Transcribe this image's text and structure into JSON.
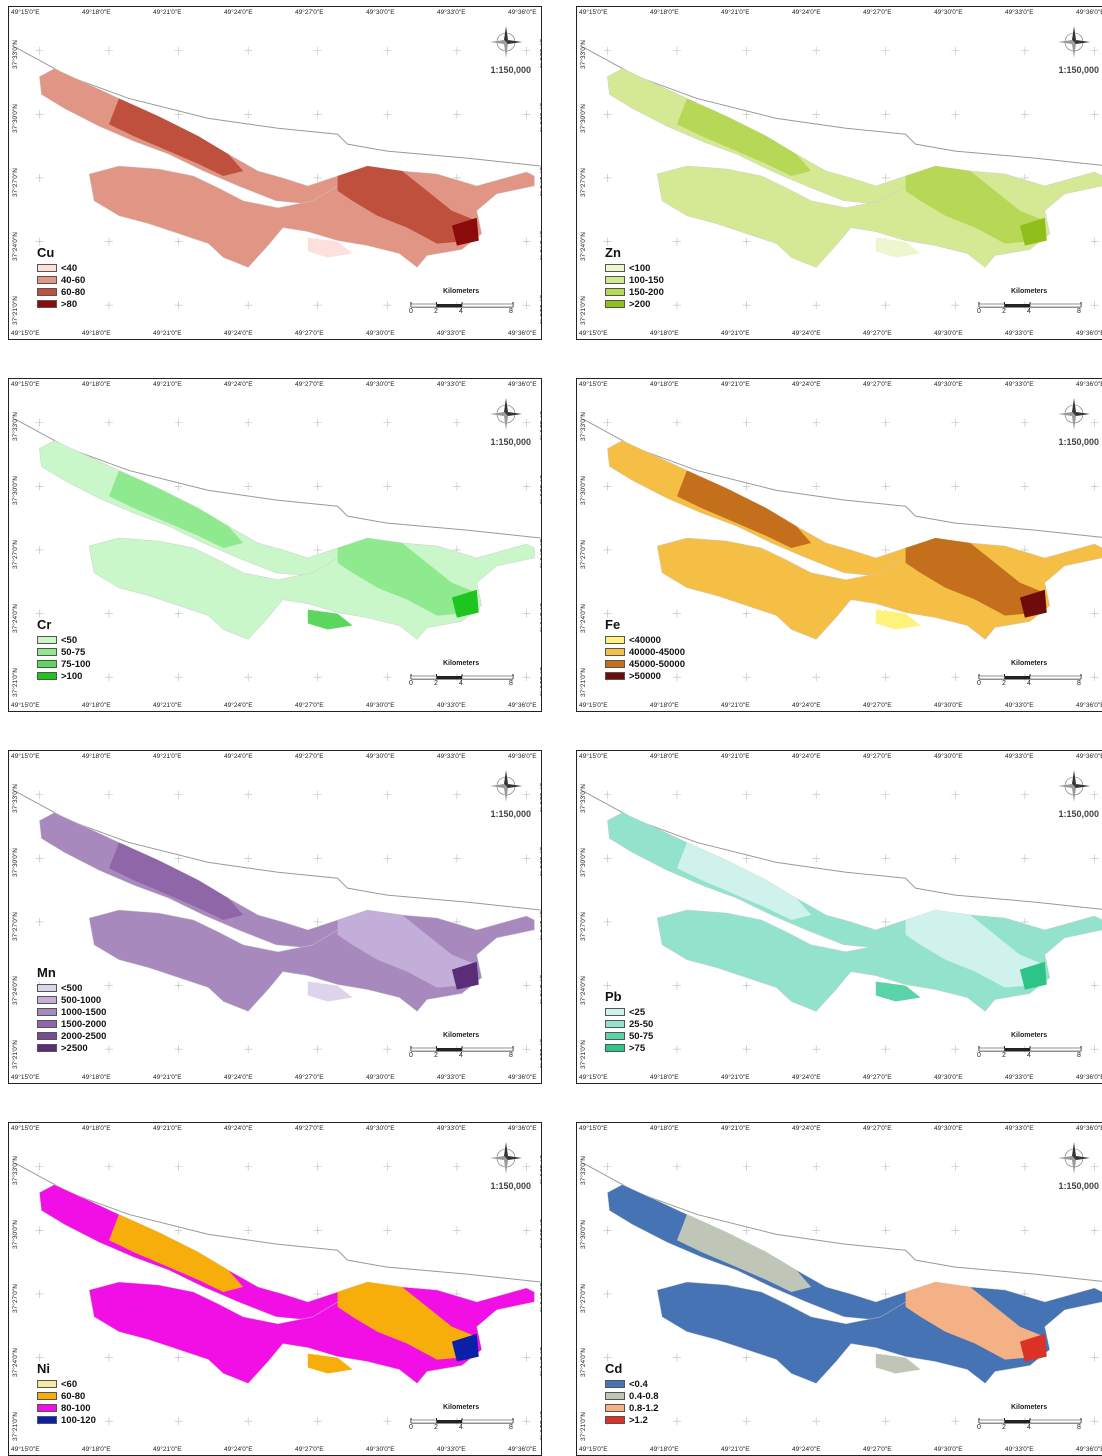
{
  "x_ticks": [
    "49°15'0\"E",
    "49°18'0\"E",
    "49°21'0\"E",
    "49°24'0\"E",
    "49°27'0\"E",
    "49°30'0\"E",
    "49°33'0\"E",
    "49°36'0\"E"
  ],
  "y_ticks": [
    "37°33'0\"N",
    "37°30'0\"N",
    "37°27'0\"N",
    "37°24'0\"N",
    "37°21'0\"N"
  ],
  "scale_ratio": "1:150,000",
  "scalebar": {
    "label": "Kilometers",
    "numbers": [
      "0",
      "2",
      "4",
      "8"
    ]
  },
  "panels": [
    {
      "title": "Cu",
      "legend": [
        {
          "label": "<40",
          "color": "#fde0dd"
        },
        {
          "label": "40-60",
          "color": "#e09585"
        },
        {
          "label": "60-80",
          "color": "#c0503e"
        },
        {
          "label": ">80",
          "color": "#8b0a0a"
        }
      ],
      "base": "#e09585",
      "patches": [
        "#c0503e",
        "#c0503e",
        "#fde0dd",
        "#8b0a0a"
      ]
    },
    {
      "title": "Zn",
      "legend": [
        {
          "label": "<100",
          "color": "#edf7cf"
        },
        {
          "label": "100-150",
          "color": "#d5e995"
        },
        {
          "label": "150-200",
          "color": "#b7d756"
        },
        {
          "label": ">200",
          "color": "#8fbf1a"
        }
      ],
      "base": "#d5e995",
      "patches": [
        "#b7d756",
        "#b7d756",
        "#edf7cf",
        "#8fbf1a"
      ]
    },
    {
      "title": "Cr",
      "legend": [
        {
          "label": "<50",
          "color": "#c9f7c9"
        },
        {
          "label": "50-75",
          "color": "#8fe98f"
        },
        {
          "label": "75-100",
          "color": "#5cd65c"
        },
        {
          "label": ">100",
          "color": "#1fc51f"
        }
      ],
      "base": "#c9f7c9",
      "patches": [
        "#8fe98f",
        "#8fe98f",
        "#5cd65c",
        "#1fc51f"
      ]
    },
    {
      "title": "Fe",
      "legend": [
        {
          "label": "<40000",
          "color": "#fff27a"
        },
        {
          "label": "40000-45000",
          "color": "#f5be45"
        },
        {
          "label": "45000-50000",
          "color": "#c46f1c"
        },
        {
          "label": ">50000",
          "color": "#6e0b0b"
        }
      ],
      "base": "#f5be45",
      "patches": [
        "#c46f1c",
        "#c46f1c",
        "#fff27a",
        "#6e0b0b"
      ]
    },
    {
      "title": "Mn",
      "legend": [
        {
          "label": "<500",
          "color": "#ddd3ea"
        },
        {
          "label": "500-1000",
          "color": "#c2aed8"
        },
        {
          "label": "1000-1500",
          "color": "#a889bd"
        },
        {
          "label": "1500-2000",
          "color": "#8f67a8"
        },
        {
          "label": "2000-2500",
          "color": "#764b91"
        },
        {
          "label": ">2500",
          "color": "#5b2d78"
        }
      ],
      "base": "#a889bd",
      "patches": [
        "#8f67a8",
        "#c2aed8",
        "#ddd3ea",
        "#5b2d78"
      ]
    },
    {
      "title": "Pb",
      "legend": [
        {
          "label": "<25",
          "color": "#cff2ec"
        },
        {
          "label": "25-50",
          "color": "#93e2cc"
        },
        {
          "label": "50-75",
          "color": "#5ad3a8"
        },
        {
          "label": ">75",
          "color": "#2dc487"
        }
      ],
      "base": "#93e2cc",
      "patches": [
        "#cff2ec",
        "#cff2ec",
        "#5ad3a8",
        "#2dc487"
      ]
    },
    {
      "title": "Ni",
      "legend": [
        {
          "label": "<60",
          "color": "#f5eaa0"
        },
        {
          "label": "60-80",
          "color": "#f7ae0a"
        },
        {
          "label": "80-100",
          "color": "#f20fe6"
        },
        {
          "label": "100-120",
          "color": "#0b1fa8"
        }
      ],
      "base": "#f20fe6",
      "patches": [
        "#f7ae0a",
        "#f7ae0a",
        "#f7ae0a",
        "#0b1fa8"
      ]
    },
    {
      "title": "Cd",
      "legend": [
        {
          "label": "<0.4",
          "color": "#4573b4"
        },
        {
          "label": "0.4-0.8",
          "color": "#bfc6b8"
        },
        {
          "label": "0.8-1.2",
          "color": "#f4b185"
        },
        {
          "label": ">1.2",
          "color": "#dc3127"
        }
      ],
      "base": "#4573b4",
      "patches": [
        "#bfc6b8",
        "#f4b185",
        "#bfc6b8",
        "#dc3127"
      ]
    }
  ]
}
